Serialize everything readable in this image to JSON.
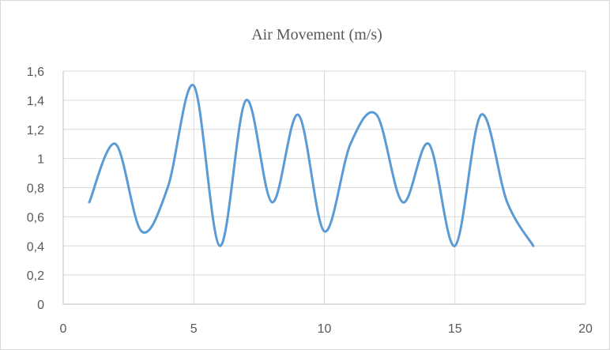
{
  "chart_data": {
    "type": "line",
    "title": "Air Movement (m/s)",
    "xlabel": "",
    "ylabel": "",
    "xlim": [
      0,
      20
    ],
    "ylim": [
      0,
      1.6
    ],
    "x_ticks": [
      0,
      5,
      10,
      15,
      20
    ],
    "x_tick_labels": [
      "0",
      "5",
      "10",
      "15",
      "20"
    ],
    "y_ticks": [
      0,
      0.2,
      0.4,
      0.6,
      0.8,
      1.0,
      1.2,
      1.4,
      1.6
    ],
    "y_tick_labels": [
      "0",
      "0,2",
      "0,4",
      "0,6",
      "0,8",
      "1",
      "1,2",
      "1,4",
      "1,6"
    ],
    "grid": true,
    "smooth": true,
    "series": [
      {
        "x": [
          1,
          2,
          3,
          4,
          5,
          6,
          7,
          8,
          9,
          10,
          11,
          12,
          13,
          14,
          15,
          16,
          17,
          18
        ],
        "y": [
          0.7,
          1.1,
          0.5,
          0.8,
          1.5,
          0.4,
          1.4,
          0.7,
          1.3,
          0.5,
          1.1,
          1.3,
          0.7,
          1.1,
          0.4,
          1.3,
          0.7,
          0.4
        ]
      }
    ],
    "colors": {
      "line": "#5b9bd5",
      "grid": "#d9d9d9",
      "axis": "#bfbfbf",
      "text": "#595959"
    }
  }
}
